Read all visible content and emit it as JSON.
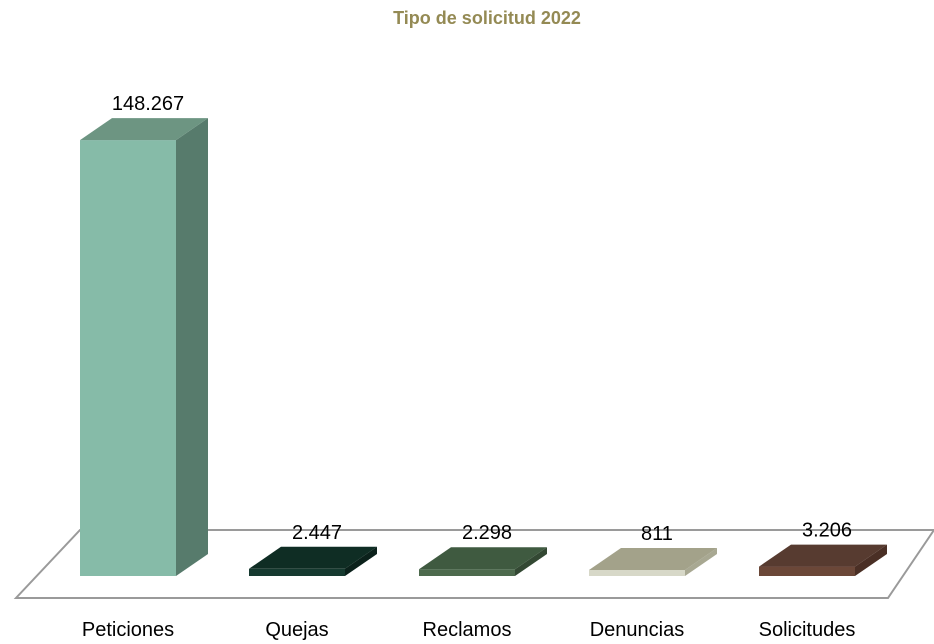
{
  "chart_data": {
    "type": "bar",
    "title": "Tipo de solicitud 2022",
    "categories": [
      "Peticiones",
      "Quejas",
      "Reclamos",
      "Denuncias",
      "Solicitudes"
    ],
    "values": [
      148267,
      2447,
      2298,
      811,
      3206
    ],
    "value_labels": [
      "148.267",
      "2.447",
      "2.298",
      "811",
      "3.206"
    ],
    "ylim": [
      0,
      150000
    ],
    "grid": false,
    "legend": "none",
    "style": "3d-column"
  },
  "colors": {
    "title": "#948a54",
    "bars": [
      {
        "front": "#86bba8",
        "side": "#577b6c",
        "top": "#6d9582"
      },
      {
        "front": "#163a30",
        "side": "#0b211b",
        "top": "#0f2d24"
      },
      {
        "front": "#4d6a4d",
        "side": "#334833",
        "top": "#3f5a40"
      },
      {
        "front": "#d7d8c8",
        "side": "#a8a892",
        "top": "#a3a28a"
      },
      {
        "front": "#6b4738",
        "side": "#4a2f25",
        "top": "#573b30"
      }
    ],
    "floor_stroke": "#9a9a9a"
  }
}
